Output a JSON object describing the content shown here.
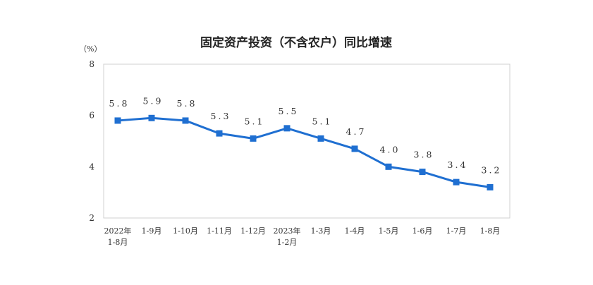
{
  "chart_data": {
    "type": "line",
    "title": "固定资产投资（不含农户）同比增速",
    "unit_label": "（%）",
    "categories": [
      [
        "2022年",
        "1-8月"
      ],
      [
        "1-9月"
      ],
      [
        "1-10月"
      ],
      [
        "1-11月"
      ],
      [
        "1-12月"
      ],
      [
        "2023年",
        "1-2月"
      ],
      [
        "1-3月"
      ],
      [
        "1-4月"
      ],
      [
        "1-5月"
      ],
      [
        "1-6月"
      ],
      [
        "1-7月"
      ],
      [
        "1-8月"
      ]
    ],
    "values": [
      5.8,
      5.9,
      5.8,
      5.3,
      5.1,
      5.5,
      5.1,
      4.7,
      4.0,
      3.8,
      3.4,
      3.2
    ],
    "data_labels": [
      "5.8",
      "5.9",
      "5.8",
      "5.3",
      "5.1",
      "5.5",
      "5.1",
      "4.7",
      "4.0",
      "3.8",
      "3.4",
      "3.2"
    ],
    "y_ticks": [
      "8",
      "6",
      "4",
      "2"
    ],
    "ylim": [
      2,
      8
    ],
    "grid": false,
    "line_color": "#1f6fd1"
  }
}
